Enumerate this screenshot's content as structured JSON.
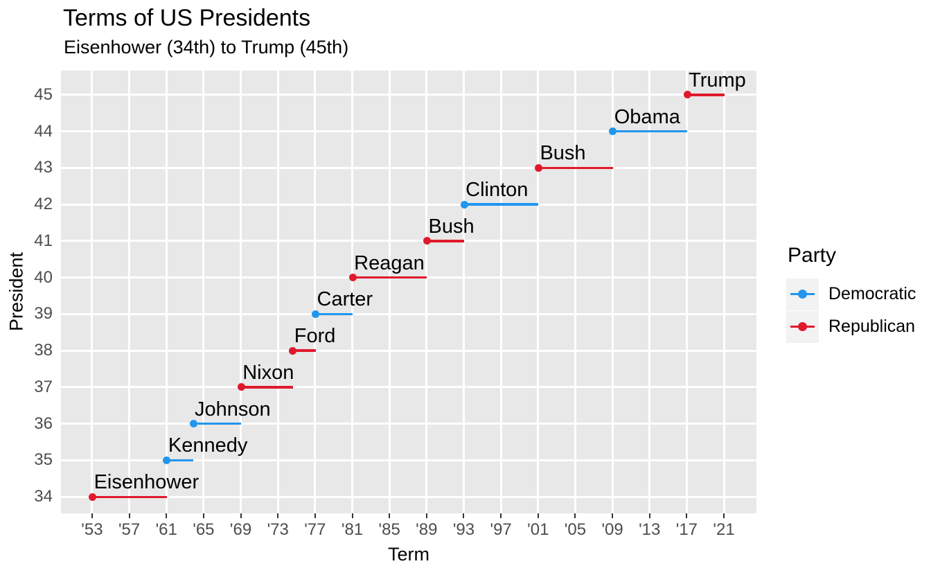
{
  "header": {
    "title": "Terms of US Presidents",
    "subtitle": "Eisenhower (34th) to Trump (45th)"
  },
  "chart_data": {
    "type": "segment",
    "title": "Terms of US Presidents",
    "subtitle": "Eisenhower (34th) to Trump (45th)",
    "xlabel": "Term",
    "ylabel": "President",
    "xlim": [
      1949.65,
      2024.5
    ],
    "ylim": [
      33.55,
      45.66
    ],
    "grid": "major gridlines only, white on gray panel",
    "legend_position": "right",
    "x_ticks": [
      {
        "year": 1953,
        "label": "'53"
      },
      {
        "year": 1957,
        "label": "'57"
      },
      {
        "year": 1961,
        "label": "'61"
      },
      {
        "year": 1965,
        "label": "'65"
      },
      {
        "year": 1969,
        "label": "'69"
      },
      {
        "year": 1973,
        "label": "'73"
      },
      {
        "year": 1977,
        "label": "'77"
      },
      {
        "year": 1981,
        "label": "'81"
      },
      {
        "year": 1985,
        "label": "'85"
      },
      {
        "year": 1989,
        "label": "'89"
      },
      {
        "year": 1993,
        "label": "'93"
      },
      {
        "year": 1997,
        "label": "'97"
      },
      {
        "year": 2001,
        "label": "'01"
      },
      {
        "year": 2005,
        "label": "'05"
      },
      {
        "year": 2009,
        "label": "'09"
      },
      {
        "year": 2013,
        "label": "'13"
      },
      {
        "year": 2017,
        "label": "'17"
      },
      {
        "year": 2021,
        "label": "'21"
      }
    ],
    "y_ticks": [
      45,
      44,
      43,
      42,
      41,
      40,
      39,
      38,
      37,
      36,
      35,
      34
    ],
    "series": [
      {
        "president": 34,
        "name": "Eisenhower",
        "party": "Republican",
        "start": 1953.05,
        "end": 1961.05
      },
      {
        "president": 35,
        "name": "Kennedy",
        "party": "Democratic",
        "start": 1961.05,
        "end": 1963.89
      },
      {
        "president": 36,
        "name": "Johnson",
        "party": "Democratic",
        "start": 1963.89,
        "end": 1969.05
      },
      {
        "president": 37,
        "name": "Nixon",
        "party": "Republican",
        "start": 1969.05,
        "end": 1974.61
      },
      {
        "president": 38,
        "name": "Ford",
        "party": "Republican",
        "start": 1974.61,
        "end": 1977.05
      },
      {
        "president": 39,
        "name": "Carter",
        "party": "Democratic",
        "start": 1977.05,
        "end": 1981.05
      },
      {
        "president": 40,
        "name": "Reagan",
        "party": "Republican",
        "start": 1981.05,
        "end": 1989.05
      },
      {
        "president": 41,
        "name": "Bush",
        "party": "Republican",
        "start": 1989.05,
        "end": 1993.05
      },
      {
        "president": 42,
        "name": "Clinton",
        "party": "Democratic",
        "start": 1993.05,
        "end": 2001.05
      },
      {
        "president": 43,
        "name": "Bush",
        "party": "Republican",
        "start": 2001.05,
        "end": 2009.05
      },
      {
        "president": 44,
        "name": "Obama",
        "party": "Democratic",
        "start": 2009.05,
        "end": 2017.05
      },
      {
        "president": 45,
        "name": "Trump",
        "party": "Republican",
        "start": 2017.05,
        "end": 2021.05
      }
    ],
    "party_colors": {
      "Democratic": "#2196EE",
      "Republican": "#E0192D"
    },
    "legend": {
      "title": "Party",
      "entries": [
        {
          "label": "Democratic",
          "party": "Democratic"
        },
        {
          "label": "Republican",
          "party": "Republican"
        }
      ]
    }
  },
  "colors": {
    "panel_bg": "#E8E8E8",
    "grid": "#FFFFFF",
    "tick_mark": "#333333",
    "tick_label": "#4D4D4D",
    "legend_key_bg": "#F2F2F2",
    "text": "#000000"
  }
}
